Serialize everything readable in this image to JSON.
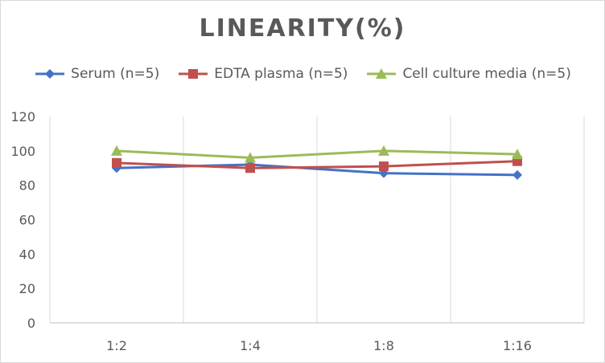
{
  "chart_data": {
    "type": "line",
    "title": "LINEARITY(%)",
    "xlabel": "",
    "ylabel": "",
    "categories": [
      "1:2",
      "1:4",
      "1:8",
      "1:16"
    ],
    "ylim": [
      0,
      120
    ],
    "yticks": [
      0,
      20,
      40,
      60,
      80,
      100,
      120
    ],
    "grid": "vertical",
    "legend_position": "top",
    "series": [
      {
        "name": "Serum (n=5)",
        "values": [
          90,
          92,
          87,
          86
        ],
        "color": "#4472c4",
        "marker": "diamond"
      },
      {
        "name": "EDTA plasma (n=5)",
        "values": [
          93,
          90,
          91,
          94
        ],
        "color": "#c0504d",
        "marker": "square"
      },
      {
        "name": "Cell culture media (n=5)",
        "values": [
          100,
          96,
          100,
          98
        ],
        "color": "#9bbb59",
        "marker": "triangle"
      }
    ]
  }
}
